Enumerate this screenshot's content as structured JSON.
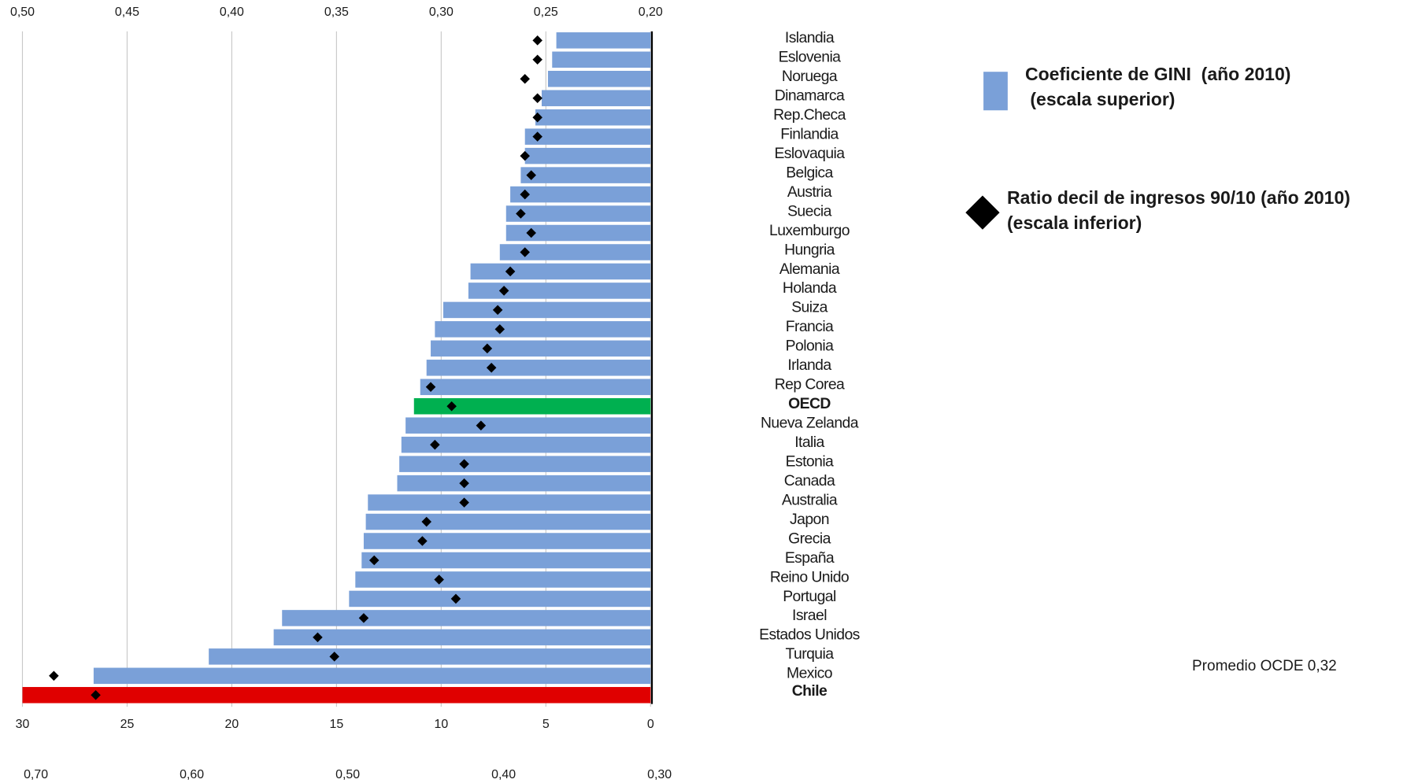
{
  "chart_data": {
    "type": "bar",
    "orientation": "horizontal",
    "categories": [
      "Islandia",
      "Eslovenia",
      "Noruega",
      "Dinamarca",
      "Rep.Checa",
      "Finlandia",
      "Eslovaquia",
      "Belgica",
      "Austria",
      "Suecia",
      "Luxemburgo",
      "Hungria",
      "Alemania",
      "Holanda",
      "Suiza",
      "Francia",
      "Polonia",
      "Irlanda",
      "Rep Corea",
      "OECD",
      "Nueva Zelanda",
      "Italia",
      "Estonia",
      "Canada",
      "Australia",
      "Japon",
      "Grecia",
      "España",
      "Reino Unido",
      "Portugal",
      "Israel",
      "Estados Unidos",
      "Turquia",
      "Mexico",
      "Chile"
    ],
    "series": [
      {
        "name": "Coeficiente de GINI  (año 2010)\n (escala superior)",
        "color": "#7aa0d8",
        "colors": [
          "#7aa0d8",
          "#7aa0d8",
          "#7aa0d8",
          "#7aa0d8",
          "#7aa0d8",
          "#7aa0d8",
          "#7aa0d8",
          "#7aa0d8",
          "#7aa0d8",
          "#7aa0d8",
          "#7aa0d8",
          "#7aa0d8",
          "#7aa0d8",
          "#7aa0d8",
          "#7aa0d8",
          "#7aa0d8",
          "#7aa0d8",
          "#7aa0d8",
          "#7aa0d8",
          "#00b050",
          "#7aa0d8",
          "#7aa0d8",
          "#7aa0d8",
          "#7aa0d8",
          "#7aa0d8",
          "#7aa0d8",
          "#7aa0d8",
          "#7aa0d8",
          "#7aa0d8",
          "#7aa0d8",
          "#7aa0d8",
          "#7aa0d8",
          "#7aa0d8",
          "#7aa0d8",
          "#e00000"
        ],
        "values": [
          0.245,
          0.247,
          0.249,
          0.252,
          0.255,
          0.26,
          0.26,
          0.262,
          0.267,
          0.269,
          0.269,
          0.272,
          0.286,
          0.287,
          0.299,
          0.303,
          0.305,
          0.307,
          0.31,
          0.313,
          0.317,
          0.319,
          0.32,
          0.321,
          0.335,
          0.336,
          0.337,
          0.338,
          0.341,
          0.344,
          0.376,
          0.38,
          0.411,
          0.466,
          0.5
        ]
      },
      {
        "name": "Ratio decil de ingresos 90/10 (año 2010)\n(escala inferior)",
        "color": "#000000",
        "marker": "diamond",
        "axis": "x2",
        "values": [
          5.4,
          5.4,
          6.0,
          5.4,
          5.4,
          5.4,
          6.0,
          5.7,
          6.0,
          6.2,
          5.7,
          6.0,
          6.7,
          7.0,
          7.3,
          7.2,
          7.8,
          7.6,
          10.5,
          9.5,
          8.1,
          10.3,
          8.9,
          8.9,
          8.9,
          10.7,
          10.9,
          13.2,
          10.1,
          9.3,
          13.7,
          15.9,
          15.1,
          28.5,
          26.5
        ]
      }
    ],
    "xlim": [
      0.5,
      0.2
    ],
    "xticks": [
      {
        "value": 0.5,
        "label": "0,50"
      },
      {
        "value": 0.45,
        "label": "0,45"
      },
      {
        "value": 0.4,
        "label": "0,40"
      },
      {
        "value": 0.35,
        "label": "0,35"
      },
      {
        "value": 0.3,
        "label": "0,30"
      },
      {
        "value": 0.25,
        "label": "0,25"
      },
      {
        "value": 0.2,
        "label": "0,20"
      }
    ],
    "x2lim": [
      30,
      0
    ],
    "x2ticks": [
      30,
      25,
      20,
      15,
      10,
      5,
      0
    ],
    "x3lim": [
      0.7,
      0.3
    ],
    "x3ticks": [
      {
        "value": 0.7,
        "label": "0,70"
      },
      {
        "value": 0.6,
        "label": "0,60"
      },
      {
        "value": 0.5,
        "label": "0,50"
      },
      {
        "value": 0.4,
        "label": "0,40"
      },
      {
        "value": 0.3,
        "label": "0,30"
      }
    ],
    "grid": true,
    "annotation": "Promedio OCDE 0,32"
  }
}
